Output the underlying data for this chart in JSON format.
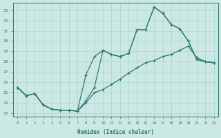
{
  "xlabel": "Humidex (Indice chaleur)",
  "bg_color": "#cce8e4",
  "line_color": "#2d7a70",
  "grid_color": "#aad4cc",
  "xlim": [
    -0.5,
    23.5
  ],
  "ylim": [
    22.7,
    33.7
  ],
  "yticks": [
    23,
    24,
    25,
    26,
    27,
    28,
    29,
    30,
    31,
    32,
    33
  ],
  "xticks": [
    0,
    1,
    2,
    3,
    4,
    5,
    6,
    7,
    8,
    9,
    10,
    11,
    12,
    13,
    14,
    15,
    16,
    17,
    18,
    19,
    20,
    21,
    22,
    23
  ],
  "line1_x": [
    0,
    1,
    2,
    3,
    4,
    5,
    6,
    7,
    8,
    9,
    10,
    11,
    12,
    13,
    14,
    15,
    16,
    17,
    18,
    19,
    20,
    21,
    22,
    23
  ],
  "line1_y": [
    25.5,
    24.7,
    24.9,
    23.8,
    23.4,
    23.3,
    23.3,
    23.2,
    26.7,
    28.5,
    29.1,
    28.7,
    28.5,
    28.8,
    31.1,
    31.1,
    33.3,
    32.7,
    31.6,
    31.2,
    30.0,
    28.2,
    28.0,
    27.9
  ],
  "line2_x": [
    0,
    1,
    2,
    3,
    4,
    5,
    6,
    7,
    8,
    9,
    10,
    11,
    12,
    13,
    14,
    15,
    16,
    17,
    18,
    19,
    20,
    21,
    22,
    23
  ],
  "line2_y": [
    25.5,
    24.7,
    24.9,
    23.8,
    23.4,
    23.3,
    23.3,
    23.2,
    24.2,
    25.5,
    29.1,
    28.7,
    28.5,
    28.8,
    31.1,
    31.1,
    33.3,
    32.7,
    31.6,
    31.2,
    30.0,
    28.2,
    28.0,
    27.9
  ],
  "line3_x": [
    0,
    1,
    2,
    3,
    4,
    5,
    6,
    7,
    8,
    9,
    10,
    11,
    12,
    13,
    14,
    15,
    16,
    17,
    18,
    19,
    20,
    21,
    22,
    23
  ],
  "line3_y": [
    25.5,
    24.7,
    24.9,
    23.8,
    23.4,
    23.3,
    23.3,
    23.2,
    24.0,
    25.0,
    25.3,
    25.8,
    26.3,
    26.9,
    27.4,
    27.9,
    28.1,
    28.5,
    28.7,
    29.1,
    29.5,
    28.4,
    28.0,
    27.9
  ]
}
